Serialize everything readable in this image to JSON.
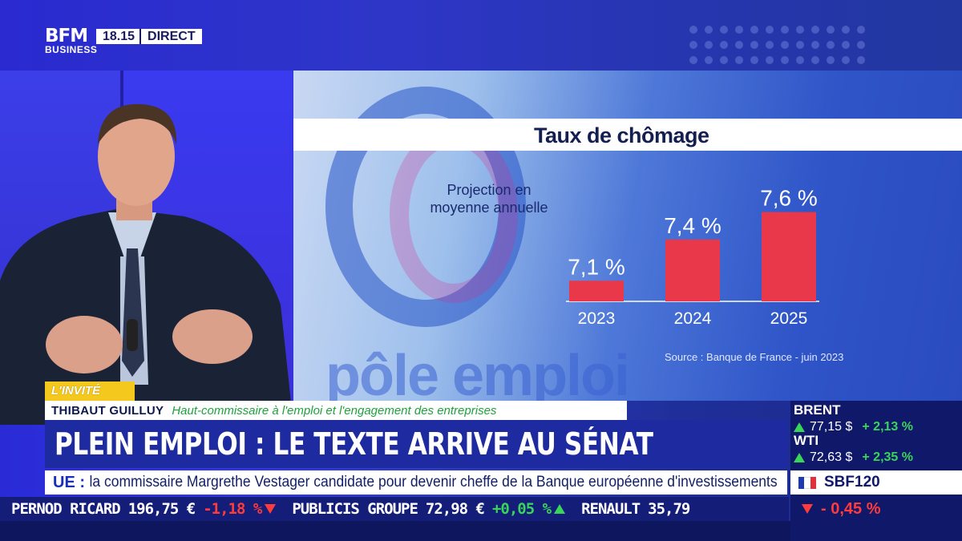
{
  "channel": {
    "logo_main": "BFM",
    "logo_sub": "BUSINESS",
    "clock": "18.15",
    "live_label": "DIRECT"
  },
  "screen": {
    "chart_data": {
      "type": "bar",
      "title": "Taux de chômage",
      "note": "Projection en moyenne annuelle",
      "categories": [
        "2023",
        "2024",
        "2025"
      ],
      "values": [
        7.1,
        7.4,
        7.6
      ],
      "value_labels": [
        "7,1 %",
        "7,4 %",
        "7,6 %"
      ],
      "ylim": [
        6.95,
        7.65
      ],
      "source": "Source : Banque de France - juin 2023",
      "bar_color": "#e8384a",
      "legend": "none",
      "grid": false
    },
    "background_logo_text": "pôle emploi"
  },
  "lower_third": {
    "tag": "L'INVITÉ",
    "guest_name": "THIBAUT GUILLUY",
    "guest_role": "Haut-commissaire à l'emploi et l'engagement des entreprises",
    "headline": "PLEIN EMPLOI : LE TEXTE ARRIVE AU SÉNAT",
    "ticker_key": "UE :",
    "ticker_text": "la commissaire Margrethe Vestager candidate pour devenir cheffe de la Banque européenne d'investissements"
  },
  "stock_ticker": [
    {
      "name": "PERNOD RICARD",
      "price": "196,75 €",
      "change": "-1,18 %",
      "direction": "down"
    },
    {
      "name": "PUBLICIS GROUPE",
      "price": "72,98 €",
      "change": "+0,05 %",
      "direction": "up"
    },
    {
      "name": "RENAULT",
      "price": "35,79",
      "change": "",
      "direction": "none"
    }
  ],
  "markets": {
    "brent": {
      "name": "BRENT",
      "value": "77,15 $",
      "change": "+ 2,13 %",
      "direction": "up"
    },
    "wti": {
      "name": "WTI",
      "value": "72,63 $",
      "change": "+ 2,35 %",
      "direction": "up"
    },
    "index": {
      "name": "SBF120",
      "change": "- 0,45 %",
      "direction": "down"
    }
  },
  "colors": {
    "accent_yellow": "#f4c81c",
    "navy": "#10186a",
    "up_green": "#39d45a",
    "down_red": "#ff3b3b",
    "role_green": "#1da33a"
  }
}
